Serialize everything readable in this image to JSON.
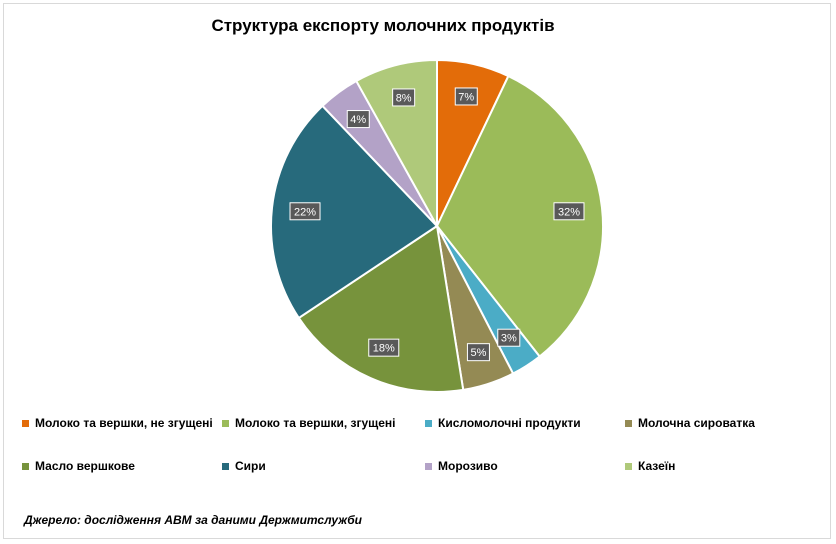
{
  "chart_data": {
    "type": "pie",
    "title": "Структура експорту молочних продуктів",
    "slices": [
      {
        "name": "Молоко та вершки, не згущені",
        "value": 7,
        "label": "7%",
        "color": "#e36c09"
      },
      {
        "name": "Молоко та вершки, згущені",
        "value": 32,
        "label": "32%",
        "color": "#9bbb59"
      },
      {
        "name": "Кисломолочні  продукти",
        "value": 3,
        "label": "3%",
        "color": "#4bacc6"
      },
      {
        "name": "Молочна сироватка",
        "value": 5,
        "label": "5%",
        "color": "#948a54"
      },
      {
        "name": "Масло вершкове",
        "value": 18,
        "label": "18%",
        "color": "#77933c"
      },
      {
        "name": "Сири",
        "value": 22,
        "label": "22%",
        "color": "#276a7c"
      },
      {
        "name": "Морозиво",
        "value": 4,
        "label": "4%",
        "color": "#b3a2c7"
      },
      {
        "name": "Казеїн",
        "value": 8,
        "label": "8%",
        "color": "#afc97a"
      }
    ],
    "legend_position": "bottom"
  },
  "source": "Джерело: дослідження АВМ за даними Держмитслужби"
}
